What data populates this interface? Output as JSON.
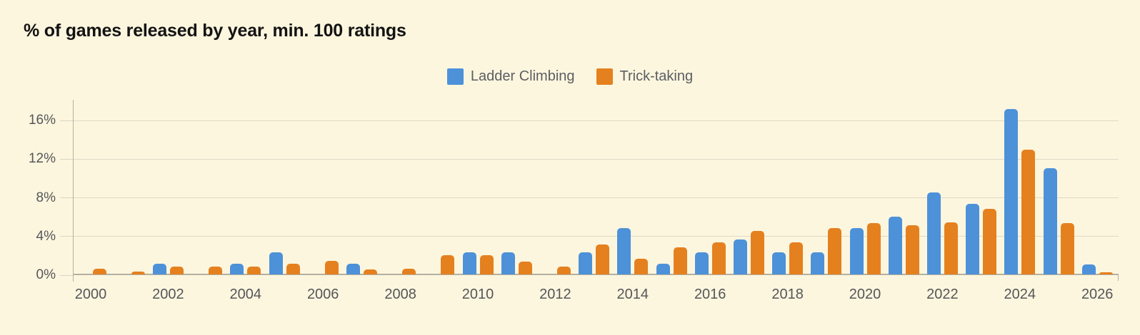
{
  "header": {
    "title": "% of games released by year, min. 100 ratings"
  },
  "colors": {
    "bg": "#fdf6de",
    "title": "#131313",
    "legendtext": "#5b5e63",
    "axistext": "#54565a",
    "grid": "#ddd9c9",
    "axis": "#b4b0a2",
    "axislight": "#d9d5c5",
    "blue": "#4d91d9",
    "orange": "#e5801f"
  },
  "chart_data": {
    "type": "bar",
    "title": "% of games released by year, min. 100 ratings",
    "categories": [
      2000,
      2001,
      2002,
      2003,
      2004,
      2005,
      2006,
      2007,
      2008,
      2009,
      2010,
      2011,
      2012,
      2013,
      2014,
      2015,
      2016,
      2017,
      2018,
      2019,
      2020,
      2021,
      2022,
      2023,
      2024,
      2025,
      2026
    ],
    "series": [
      {
        "name": "Ladder Climbing",
        "color": "#4d91d9",
        "values": [
          0,
          0,
          1.1,
          0,
          1.1,
          2.3,
          0,
          1.1,
          0,
          0,
          2.3,
          2.3,
          0,
          2.3,
          4.8,
          1.1,
          2.3,
          3.6,
          2.3,
          2.3,
          4.8,
          6.0,
          8.5,
          7.3,
          17.1,
          11.0,
          1.0
        ]
      },
      {
        "name": "Trick-taking",
        "color": "#e5801f",
        "values": [
          0.6,
          0.3,
          0.8,
          0.8,
          0.8,
          1.1,
          1.4,
          0.5,
          0.6,
          2.0,
          2.0,
          1.3,
          0.8,
          3.1,
          1.6,
          2.8,
          3.3,
          4.5,
          3.3,
          4.8,
          5.3,
          5.1,
          5.4,
          6.8,
          12.9,
          5.3,
          0.2
        ]
      }
    ],
    "xlabel": "",
    "ylabel": "",
    "y_ticks": [
      {
        "value": 0,
        "label": "0%"
      },
      {
        "value": 4,
        "label": "4%"
      },
      {
        "value": 8,
        "label": "8%"
      },
      {
        "value": 12,
        "label": "12%"
      },
      {
        "value": 16,
        "label": "16%"
      }
    ],
    "x_tick_label_years": [
      2000,
      2002,
      2004,
      2006,
      2008,
      2010,
      2012,
      2014,
      2016,
      2018,
      2020,
      2022,
      2024,
      2026
    ],
    "ylim": [
      0,
      18.1
    ],
    "grid": "horizontal",
    "legend_position": "top-center"
  }
}
